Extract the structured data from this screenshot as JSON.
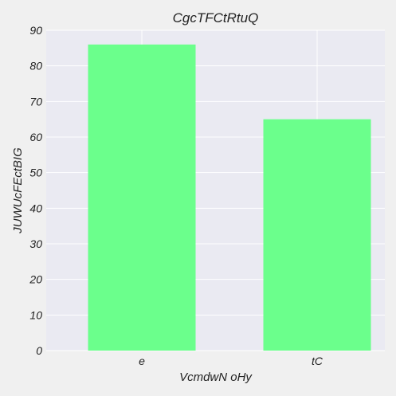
{
  "chart_data": {
    "type": "bar",
    "title": "CgcTFCtRtuQ",
    "xlabel": "VcmdwN oHy",
    "ylabel": "JUWUcFEctBIG",
    "categories": [
      "e",
      "tC"
    ],
    "values": [
      86,
      65
    ],
    "ylim": [
      0,
      90
    ],
    "yticks": [
      0,
      10,
      20,
      30,
      40,
      50,
      60,
      70,
      80,
      90
    ],
    "grid": true,
    "legend": "none"
  },
  "colors": {
    "figure_background": "#f0f0f0",
    "plot_background": "#eaeaf2",
    "bar": "#6bff8c",
    "grid": "#ffffff",
    "text": "#222222"
  }
}
